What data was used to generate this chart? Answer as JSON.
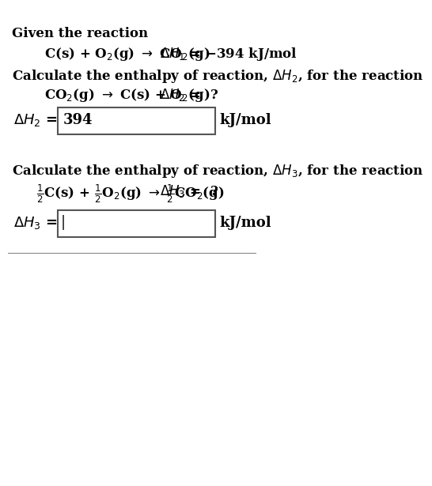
{
  "bg_color": "#ffffff",
  "text_color": "#000000",
  "line1_label": "Given the reaction",
  "line2_eq": "C(s) + O$_2$(g) $\\rightarrow$ CO$_2$(g)",
  "line2_dh": "$\\Delta H_1$ = −394 kJ/mol",
  "line3_label": "Calculate the enthalpy of reaction, $\\Delta H_2$, for the reaction",
  "line4_eq": "CO$_2$(g) $\\rightarrow$ C(s) + O$_2$(g)",
  "line4_dh": "$\\Delta H_2$ =  ?",
  "box1_label_left": "$\\Delta H_2$ =",
  "box1_value": "394",
  "box1_label_right": "kJ/mol",
  "line5_label": "Calculate the enthalpy of reaction, $\\Delta H_3$, for the reaction",
  "line6_eq": "$\\frac{1}{2}$C(s) + $\\frac{1}{2}$O$_2$(g) $\\rightarrow$ $\\frac{1}{2}$CO$_2$(g)",
  "line6_dh": "$\\Delta H_3$ =  ?",
  "box2_label_left": "$\\Delta H_3$ =",
  "box2_value": "|",
  "box2_label_right": "kJ/mol",
  "font_size_label": 12,
  "font_size_eq": 12,
  "font_size_box": 13
}
